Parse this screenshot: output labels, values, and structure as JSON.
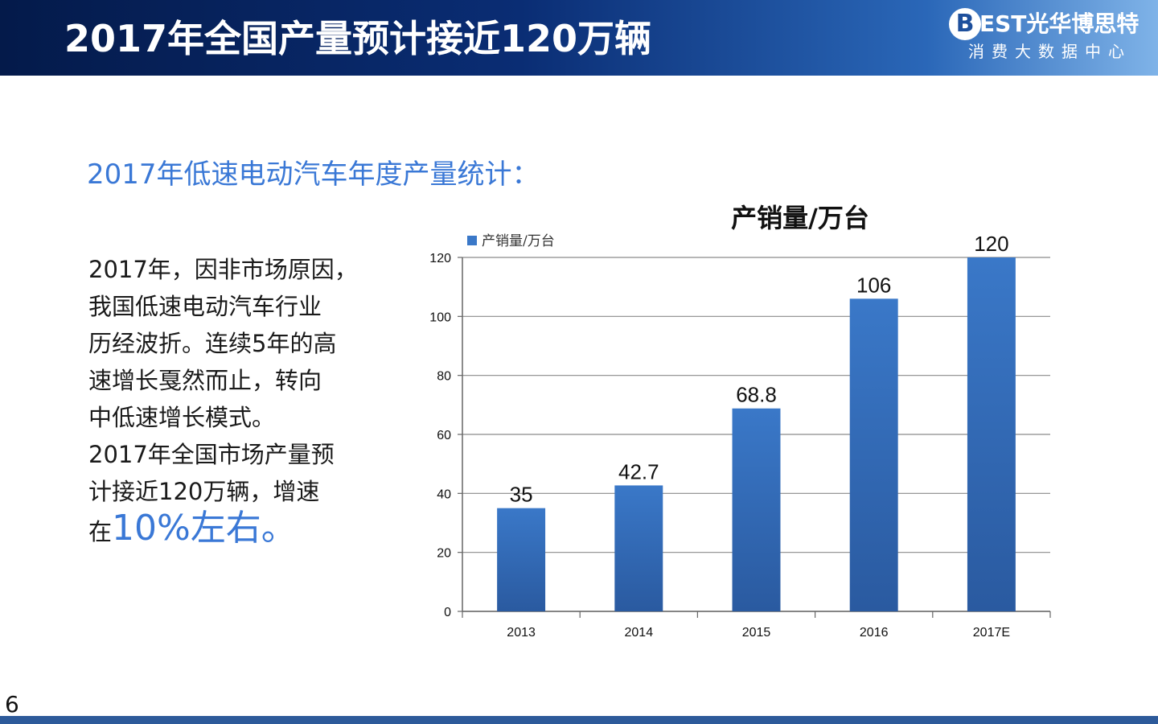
{
  "header": {
    "title": "2017年全国产量预计接近120万辆",
    "logo_mark": "B",
    "logo_name": "EST光华博思特",
    "logo_sub": "消费大数据中心"
  },
  "subtitle": "2017年低速电动汽车年度产量统计：",
  "body": {
    "lines": [
      "2017年，因非市场原因，",
      "我国低速电动汽车行业",
      "历经波折。连续5年的高",
      "速增长戛然而止，转向",
      "中低速增长模式。",
      "2017年全国市场产量预",
      "计接近120万辆，增速"
    ],
    "last_prefix": "在",
    "last_highlight": "10%左右。"
  },
  "chart_data": {
    "type": "bar",
    "title": "产销量/万台",
    "categories": [
      "2013",
      "2014",
      "2015",
      "2016",
      "2017E"
    ],
    "series": [
      {
        "name": "产销量/万台",
        "values": [
          35,
          42.7,
          68.8,
          106,
          120
        ],
        "color": "#3a78c8"
      }
    ],
    "data_labels": [
      "35",
      "42.7",
      "68.8",
      "106",
      "120"
    ],
    "ylim": [
      0,
      120
    ],
    "yticks": [
      0,
      20,
      40,
      60,
      80,
      100,
      120
    ],
    "grid": true,
    "legend": "top-left"
  },
  "page_number": "6",
  "colors": {
    "accent": "#3a78d6",
    "bar": "#3a78c8",
    "bar_dark": "#2a5aa0",
    "header_dark": "#041a4a",
    "footer": "#2d5a9a"
  }
}
